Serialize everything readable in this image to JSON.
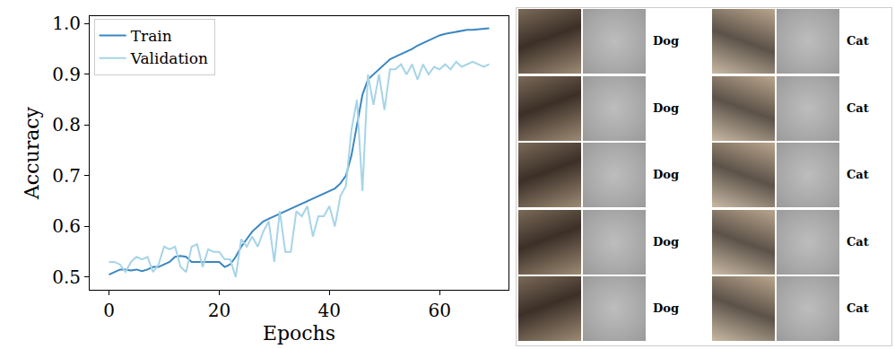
{
  "chart_data": {
    "type": "line",
    "x_label": "Epochs",
    "y_label": "Accuracy",
    "x": [
      0,
      1,
      2,
      3,
      4,
      5,
      6,
      7,
      8,
      9,
      10,
      11,
      12,
      13,
      14,
      15,
      16,
      17,
      18,
      19,
      20,
      21,
      22,
      23,
      24,
      25,
      26,
      27,
      28,
      29,
      30,
      31,
      32,
      33,
      34,
      35,
      36,
      37,
      38,
      39,
      40,
      41,
      42,
      43,
      44,
      45,
      46,
      47,
      48,
      49,
      50,
      51,
      52,
      53,
      54,
      55,
      56,
      57,
      58,
      59,
      60,
      61,
      62,
      63,
      64,
      65,
      66,
      67,
      68,
      69
    ],
    "series": [
      {
        "name": "Train",
        "color": "#3a86c0",
        "line_style": "solid",
        "values": [
          0.505,
          0.51,
          0.515,
          0.515,
          0.513,
          0.515,
          0.512,
          0.515,
          0.52,
          0.52,
          0.525,
          0.53,
          0.54,
          0.542,
          0.54,
          0.53,
          0.53,
          0.53,
          0.53,
          0.53,
          0.53,
          0.52,
          0.525,
          0.54,
          0.56,
          0.575,
          0.59,
          0.6,
          0.61,
          0.615,
          0.62,
          0.625,
          0.63,
          0.635,
          0.64,
          0.645,
          0.65,
          0.655,
          0.66,
          0.665,
          0.67,
          0.675,
          0.685,
          0.7,
          0.74,
          0.8,
          0.86,
          0.89,
          0.9,
          0.91,
          0.92,
          0.93,
          0.935,
          0.94,
          0.945,
          0.95,
          0.957,
          0.962,
          0.968,
          0.972,
          0.977,
          0.98,
          0.982,
          0.985,
          0.987,
          0.988,
          0.988,
          0.989,
          0.99,
          0.991
        ]
      },
      {
        "name": "Validation",
        "color": "#a6d4e8",
        "line_style": "solid",
        "values": [
          0.53,
          0.53,
          0.525,
          0.51,
          0.53,
          0.54,
          0.535,
          0.54,
          0.51,
          0.525,
          0.56,
          0.555,
          0.56,
          0.52,
          0.51,
          0.56,
          0.565,
          0.52,
          0.555,
          0.55,
          0.55,
          0.535,
          0.535,
          0.5,
          0.575,
          0.56,
          0.58,
          0.56,
          0.59,
          0.61,
          0.53,
          0.63,
          0.55,
          0.55,
          0.63,
          0.62,
          0.64,
          0.58,
          0.62,
          0.62,
          0.64,
          0.6,
          0.66,
          0.68,
          0.79,
          0.85,
          0.67,
          0.9,
          0.84,
          0.9,
          0.83,
          0.91,
          0.91,
          0.92,
          0.9,
          0.92,
          0.89,
          0.92,
          0.9,
          0.915,
          0.91,
          0.92,
          0.91,
          0.925,
          0.915,
          0.92,
          0.925,
          0.92,
          0.915,
          0.92
        ]
      }
    ],
    "xlim": [
      -3.5,
      72.5
    ],
    "xticks": [
      0,
      20,
      40,
      60
    ],
    "ylim": [
      0.475,
      1.015
    ],
    "yticks": [
      0.5,
      0.6,
      0.7,
      0.8,
      0.9,
      {
        "value": 1,
        "label": "1.0"
      }
    ],
    "grid": false,
    "legend": "upper left"
  },
  "image_grid": {
    "rows": [
      [
        "Dog",
        "Cat"
      ],
      [
        "Dog",
        "Cat"
      ],
      [
        "Dog",
        "Cat"
      ],
      [
        "Dog",
        "Cat"
      ],
      [
        "Dog",
        "Cat"
      ]
    ]
  }
}
